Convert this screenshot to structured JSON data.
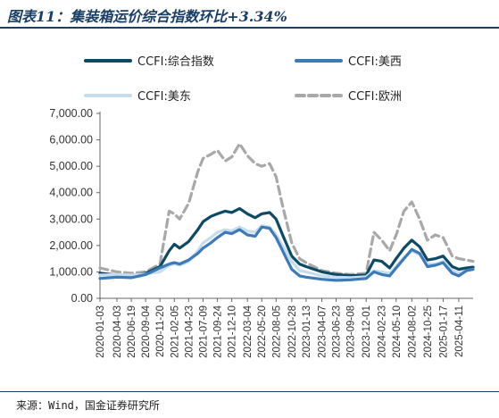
{
  "title": "图表11：集装箱运价综合指数环比+3.34%",
  "source": "来源：Wind，国金证券研究所",
  "chart_data": {
    "type": "line",
    "ylim": [
      0,
      7000
    ],
    "yticks": [
      "7,000.00",
      "6,000.00",
      "5,000.00",
      "4,000.00",
      "3,000.00",
      "2,000.00",
      "1,000.00",
      "0.00"
    ],
    "ytick_values": [
      7000,
      6000,
      5000,
      4000,
      3000,
      2000,
      1000,
      0
    ],
    "xticks": [
      "2020-01-03",
      "2020-04-03",
      "2020-06-19",
      "2020-09-04",
      "2020-11-20",
      "2021-02-05",
      "2021-04-23",
      "2021-07-09",
      "2021-09-24",
      "2021-12-10",
      "2022-03-04",
      "2022-05-20",
      "2022-08-05",
      "2022-10-28",
      "2023-01-13",
      "2023-04-07",
      "2023-06-23",
      "2023-09-08",
      "2023-12-01",
      "2024-02-23",
      "2024-05-10",
      "2024-08-02",
      "2024-10-25",
      "2025-01-17",
      "2025-04-11"
    ],
    "legend": [
      "CCFI:综合指数",
      "CCFI:美西",
      "CCFI:美东",
      "CCFI:欧洲"
    ],
    "colors": {
      "composite": "#0d4a66",
      "west": "#3d7ab8",
      "east": "#c6dcef",
      "europe": "#a8a8a8"
    },
    "x_range": [
      "2020-01-03",
      "2025-06-27"
    ],
    "series": [
      {
        "name": "CCFI:综合指数",
        "key": "composite",
        "points": [
          [
            "2020-01-03",
            950
          ],
          [
            "2020-04-03",
            880
          ],
          [
            "2020-06-19",
            850
          ],
          [
            "2020-09-04",
            950
          ],
          [
            "2020-11-20",
            1200
          ],
          [
            "2021-01-08",
            1800
          ],
          [
            "2021-02-05",
            2050
          ],
          [
            "2021-03-05",
            1900
          ],
          [
            "2021-04-23",
            2150
          ],
          [
            "2021-06-11",
            2600
          ],
          [
            "2021-07-09",
            2900
          ],
          [
            "2021-08-20",
            3100
          ],
          [
            "2021-09-24",
            3200
          ],
          [
            "2021-11-05",
            3300
          ],
          [
            "2021-12-10",
            3250
          ],
          [
            "2022-01-21",
            3400
          ],
          [
            "2022-03-04",
            3200
          ],
          [
            "2022-04-15",
            3050
          ],
          [
            "2022-05-20",
            3200
          ],
          [
            "2022-07-01",
            3250
          ],
          [
            "2022-08-05",
            3000
          ],
          [
            "2022-09-09",
            2400
          ],
          [
            "2022-10-28",
            1600
          ],
          [
            "2022-12-09",
            1300
          ],
          [
            "2023-01-13",
            1200
          ],
          [
            "2023-04-07",
            1000
          ],
          [
            "2023-06-23",
            900
          ],
          [
            "2023-09-08",
            860
          ],
          [
            "2023-12-01",
            880
          ],
          [
            "2024-01-12",
            1450
          ],
          [
            "2024-02-23",
            1400
          ],
          [
            "2024-04-05",
            1150
          ],
          [
            "2024-05-10",
            1500
          ],
          [
            "2024-06-21",
            1900
          ],
          [
            "2024-08-02",
            2200
          ],
          [
            "2024-09-13",
            1950
          ],
          [
            "2024-10-25",
            1450
          ],
          [
            "2024-12-06",
            1500
          ],
          [
            "2025-01-17",
            1600
          ],
          [
            "2025-03-07",
            1200
          ],
          [
            "2025-04-11",
            1100
          ],
          [
            "2025-05-23",
            1150
          ],
          [
            "2025-06-27",
            1180
          ]
        ]
      },
      {
        "name": "CCFI:美西",
        "key": "west",
        "points": [
          [
            "2020-01-03",
            750
          ],
          [
            "2020-04-03",
            800
          ],
          [
            "2020-06-19",
            780
          ],
          [
            "2020-09-04",
            900
          ],
          [
            "2020-11-20",
            1150
          ],
          [
            "2021-01-08",
            1300
          ],
          [
            "2021-02-05",
            1350
          ],
          [
            "2021-03-05",
            1300
          ],
          [
            "2021-04-23",
            1450
          ],
          [
            "2021-06-11",
            1700
          ],
          [
            "2021-07-09",
            1900
          ],
          [
            "2021-08-20",
            2100
          ],
          [
            "2021-09-24",
            2300
          ],
          [
            "2021-11-05",
            2500
          ],
          [
            "2021-12-10",
            2450
          ],
          [
            "2022-01-21",
            2600
          ],
          [
            "2022-03-04",
            2400
          ],
          [
            "2022-04-15",
            2350
          ],
          [
            "2022-05-20",
            2700
          ],
          [
            "2022-07-01",
            2650
          ],
          [
            "2022-08-05",
            2300
          ],
          [
            "2022-09-09",
            1800
          ],
          [
            "2022-10-28",
            1100
          ],
          [
            "2022-12-09",
            850
          ],
          [
            "2023-01-13",
            800
          ],
          [
            "2023-04-07",
            720
          ],
          [
            "2023-06-23",
            680
          ],
          [
            "2023-09-08",
            700
          ],
          [
            "2023-12-01",
            750
          ],
          [
            "2024-01-12",
            1000
          ],
          [
            "2024-02-23",
            900
          ],
          [
            "2024-04-05",
            850
          ],
          [
            "2024-05-10",
            1150
          ],
          [
            "2024-06-21",
            1500
          ],
          [
            "2024-08-02",
            1850
          ],
          [
            "2024-09-13",
            1700
          ],
          [
            "2024-10-25",
            1200
          ],
          [
            "2024-12-06",
            1250
          ],
          [
            "2025-01-17",
            1350
          ],
          [
            "2025-03-07",
            950
          ],
          [
            "2025-04-11",
            850
          ],
          [
            "2025-05-23",
            1050
          ],
          [
            "2025-06-27",
            1100
          ]
        ]
      },
      {
        "name": "CCFI:美东",
        "key": "east",
        "points": [
          [
            "2020-01-03",
            880
          ],
          [
            "2020-04-03",
            900
          ],
          [
            "2020-06-19",
            880
          ],
          [
            "2020-09-04",
            920
          ],
          [
            "2020-11-20",
            1000
          ],
          [
            "2021-01-08",
            1250
          ],
          [
            "2021-02-05",
            1300
          ],
          [
            "2021-03-05",
            1250
          ],
          [
            "2021-04-23",
            1400
          ],
          [
            "2021-06-11",
            1800
          ],
          [
            "2021-07-09",
            2100
          ],
          [
            "2021-08-20",
            2300
          ],
          [
            "2021-09-24",
            2500
          ],
          [
            "2021-11-05",
            2600
          ],
          [
            "2021-12-10",
            2550
          ],
          [
            "2022-01-21",
            2700
          ],
          [
            "2022-03-04",
            2550
          ],
          [
            "2022-04-15",
            2500
          ],
          [
            "2022-05-20",
            2750
          ],
          [
            "2022-07-01",
            2700
          ],
          [
            "2022-08-05",
            2400
          ],
          [
            "2022-09-09",
            2000
          ],
          [
            "2022-10-28",
            1400
          ],
          [
            "2022-12-09",
            1050
          ],
          [
            "2023-01-13",
            1000
          ],
          [
            "2023-04-07",
            850
          ],
          [
            "2023-06-23",
            800
          ],
          [
            "2023-09-08",
            780
          ],
          [
            "2023-12-01",
            820
          ],
          [
            "2024-01-12",
            1050
          ],
          [
            "2024-02-23",
            1000
          ],
          [
            "2024-04-05",
            950
          ],
          [
            "2024-05-10",
            1200
          ],
          [
            "2024-06-21",
            1550
          ],
          [
            "2024-08-02",
            1800
          ],
          [
            "2024-09-13",
            1650
          ],
          [
            "2024-10-25",
            1300
          ],
          [
            "2024-12-06",
            1300
          ],
          [
            "2025-01-17",
            1400
          ],
          [
            "2025-03-07",
            1050
          ],
          [
            "2025-04-11",
            950
          ],
          [
            "2025-05-23",
            1050
          ],
          [
            "2025-06-27",
            1100
          ]
        ]
      },
      {
        "name": "CCFI:欧洲",
        "key": "europe",
        "points": [
          [
            "2020-01-03",
            1150
          ],
          [
            "2020-04-03",
            1000
          ],
          [
            "2020-06-19",
            950
          ],
          [
            "2020-09-04",
            1000
          ],
          [
            "2020-11-20",
            1300
          ],
          [
            "2021-01-08",
            3300
          ],
          [
            "2021-02-05",
            3200
          ],
          [
            "2021-03-05",
            3000
          ],
          [
            "2021-04-23",
            3600
          ],
          [
            "2021-06-11",
            4800
          ],
          [
            "2021-07-09",
            5300
          ],
          [
            "2021-08-20",
            5450
          ],
          [
            "2021-09-24",
            5600
          ],
          [
            "2021-11-05",
            5200
          ],
          [
            "2021-12-10",
            5350
          ],
          [
            "2022-01-21",
            5850
          ],
          [
            "2022-03-04",
            5400
          ],
          [
            "2022-04-15",
            5100
          ],
          [
            "2022-05-20",
            5000
          ],
          [
            "2022-07-01",
            5100
          ],
          [
            "2022-08-05",
            4600
          ],
          [
            "2022-09-09",
            3500
          ],
          [
            "2022-10-28",
            2100
          ],
          [
            "2022-12-09",
            1500
          ],
          [
            "2023-01-13",
            1350
          ],
          [
            "2023-04-07",
            1050
          ],
          [
            "2023-06-23",
            950
          ],
          [
            "2023-09-08",
            900
          ],
          [
            "2023-12-01",
            950
          ],
          [
            "2024-01-12",
            2500
          ],
          [
            "2024-02-23",
            2200
          ],
          [
            "2024-04-05",
            1800
          ],
          [
            "2024-05-10",
            2400
          ],
          [
            "2024-06-21",
            3300
          ],
          [
            "2024-08-02",
            3650
          ],
          [
            "2024-09-13",
            3000
          ],
          [
            "2024-10-25",
            2200
          ],
          [
            "2024-12-06",
            2400
          ],
          [
            "2025-01-17",
            2300
          ],
          [
            "2025-03-07",
            1600
          ],
          [
            "2025-04-11",
            1500
          ],
          [
            "2025-05-23",
            1450
          ],
          [
            "2025-06-27",
            1400
          ]
        ]
      }
    ]
  }
}
